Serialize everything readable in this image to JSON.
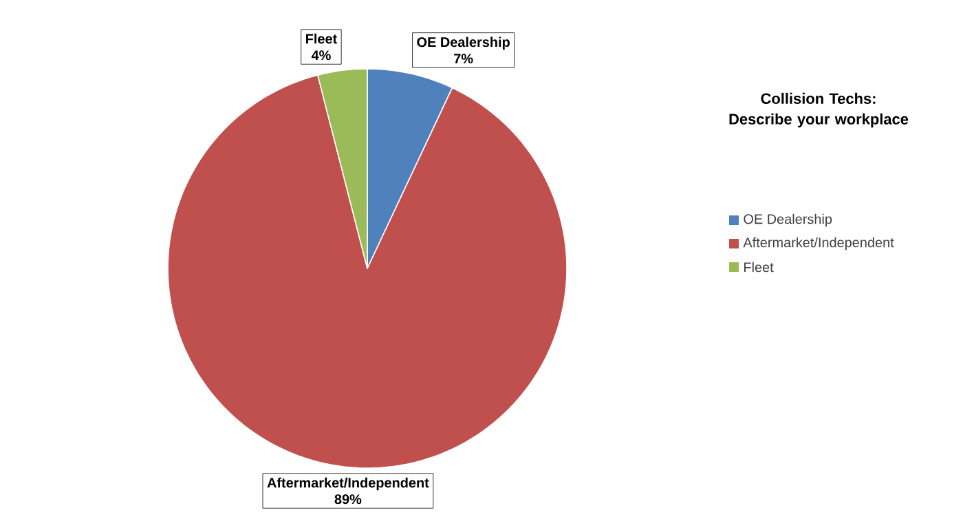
{
  "chart_data": {
    "type": "pie",
    "title": "Collision Techs: Describe your workplace",
    "categories": [
      "OE Dealership",
      "Aftermarket/Independent",
      "Fleet"
    ],
    "values": [
      7,
      89,
      4
    ],
    "colors": [
      "#4f81bd",
      "#c0504d",
      "#9bbb59"
    ],
    "value_labels": [
      "7%",
      "89%",
      "4%"
    ],
    "legend": "right"
  }
}
